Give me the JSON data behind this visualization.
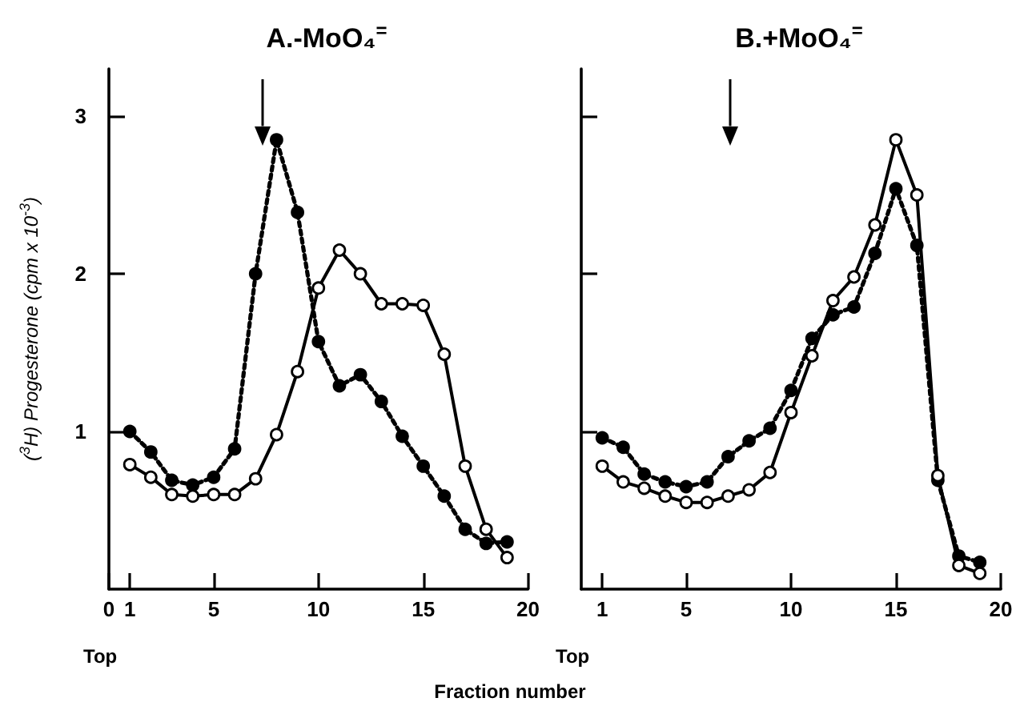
{
  "chart_data": [
    {
      "type": "line",
      "title": "A.-MoO₄$^{=}$",
      "ylabel": "($^{3}$H) Progesterone (cpm x 10$^{-3}$)",
      "annotations": [
        "Top"
      ],
      "x": [
        1,
        2,
        3,
        4,
        5,
        6,
        7,
        8,
        9,
        10,
        11,
        12,
        13,
        14,
        15,
        16,
        17,
        18,
        19
      ],
      "series": [
        {
          "color": "#000000",
          "line_style": "solid",
          "values": [
            0.79,
            0.71,
            0.6,
            0.59,
            0.6,
            0.6,
            0.7,
            0.98,
            1.38,
            1.91,
            2.15,
            2.0,
            1.81,
            1.81,
            1.8,
            1.49,
            0.78,
            0.38,
            0.2
          ]
        },
        {
          "color": "#000000",
          "line_style": "dotted",
          "values": [
            1.0,
            0.87,
            0.69,
            0.66,
            0.71,
            0.89,
            2.0,
            2.85,
            2.39,
            1.57,
            1.29,
            1.36,
            1.19,
            0.97,
            0.78,
            0.59,
            0.38,
            0.29,
            0.3
          ]
        }
      ],
      "xlim": [
        0,
        20
      ],
      "xticks": [
        0,
        1,
        5,
        10,
        15,
        20
      ],
      "ylim": [
        0,
        3.3
      ],
      "yticks": [
        1,
        2,
        3
      ],
      "grid": false,
      "marker": "circle",
      "ref_lines": [
        {
          "axis": "x",
          "value": 7.3
        }
      ]
    },
    {
      "type": "line",
      "title": "B.+MoO₄$^{=}$",
      "xlabel": "Fraction number",
      "annotations": [
        "Top"
      ],
      "x": [
        1,
        2,
        3,
        4,
        5,
        6,
        7,
        8,
        9,
        10,
        11,
        12,
        13,
        14,
        15,
        16,
        17,
        18,
        19
      ],
      "series": [
        {
          "color": "#000000",
          "line_style": "solid",
          "values": [
            0.78,
            0.68,
            0.64,
            0.59,
            0.55,
            0.55,
            0.59,
            0.63,
            0.74,
            1.12,
            1.48,
            1.83,
            1.98,
            2.31,
            2.85,
            2.5,
            0.72,
            0.15,
            0.1
          ]
        },
        {
          "color": "#000000",
          "line_style": "dotted",
          "values": [
            0.96,
            0.9,
            0.73,
            0.68,
            0.65,
            0.68,
            0.84,
            0.94,
            1.02,
            1.26,
            1.59,
            1.74,
            1.79,
            2.13,
            2.54,
            2.18,
            0.69,
            0.21,
            0.17
          ]
        }
      ],
      "xlim": [
        0,
        20
      ],
      "xticks": [
        1,
        5,
        10,
        15,
        20
      ],
      "ylim": [
        0,
        3.3
      ],
      "yticks": [
        1,
        2,
        3
      ],
      "grid": false,
      "marker": "circle",
      "tick_labels": "x",
      "ref_lines": [
        {
          "axis": "x",
          "value": 7.1
        }
      ]
    }
  ]
}
